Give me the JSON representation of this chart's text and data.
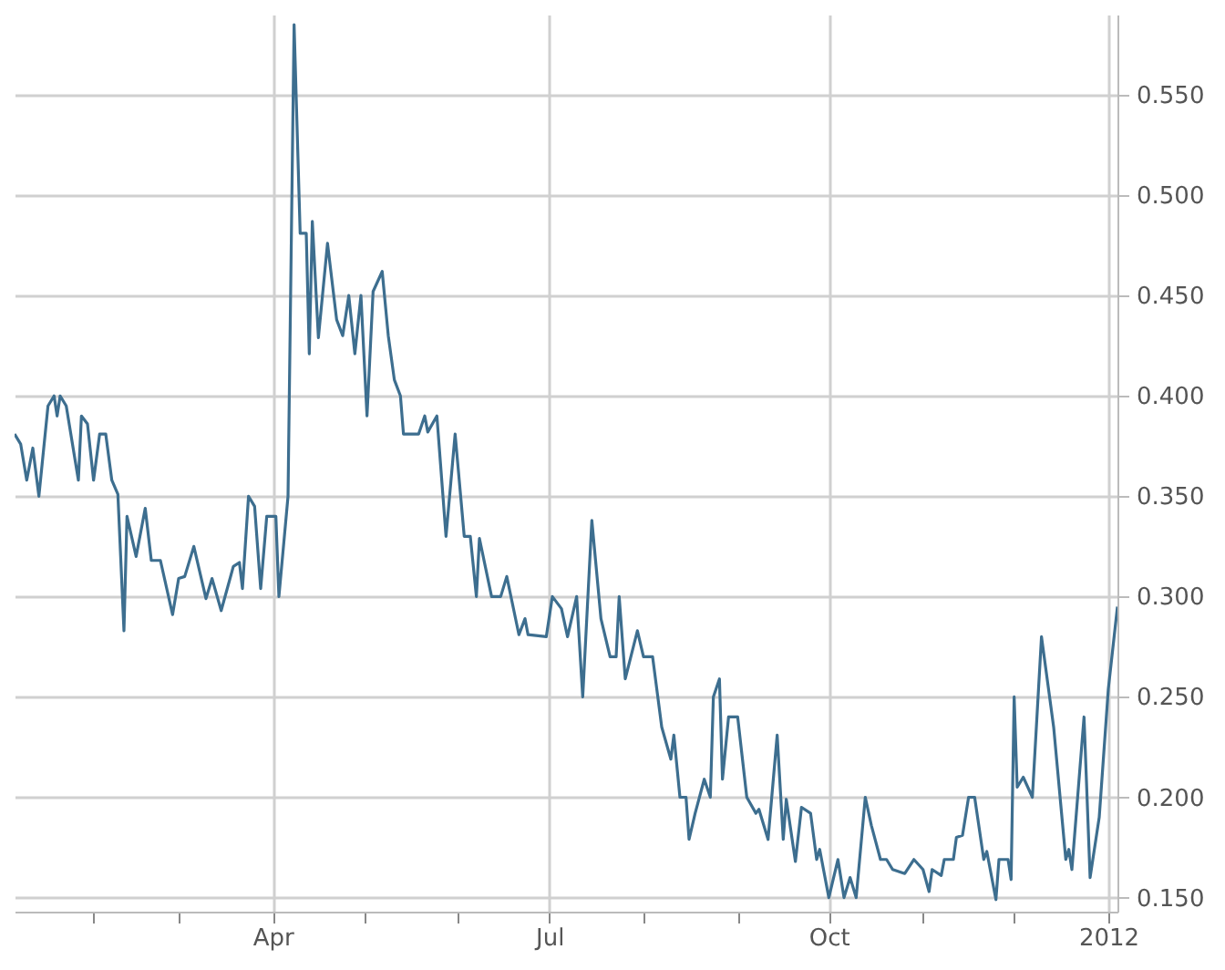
{
  "chart_data": {
    "type": "line",
    "x": [
      "2011-01-06",
      "2011-01-08",
      "2011-01-10",
      "2011-01-12",
      "2011-01-14",
      "2011-01-17",
      "2011-01-19",
      "2011-01-20",
      "2011-01-21",
      "2011-01-23",
      "2011-01-27",
      "2011-01-28",
      "2011-01-30",
      "2011-02-01",
      "2011-02-03",
      "2011-02-05",
      "2011-02-07",
      "2011-02-09",
      "2011-02-11",
      "2011-02-12",
      "2011-02-15",
      "2011-02-18",
      "2011-02-20",
      "2011-02-23",
      "2011-02-27",
      "2011-03-01",
      "2011-03-03",
      "2011-03-06",
      "2011-03-10",
      "2011-03-12",
      "2011-03-15",
      "2011-03-19",
      "2011-03-21",
      "2011-03-22",
      "2011-03-24",
      "2011-03-26",
      "2011-03-28",
      "2011-03-30",
      "2011-04-02",
      "2011-04-03",
      "2011-04-06",
      "2011-04-08",
      "2011-04-10",
      "2011-04-12",
      "2011-04-13",
      "2011-04-14",
      "2011-04-16",
      "2011-04-19",
      "2011-04-22",
      "2011-04-24",
      "2011-04-26",
      "2011-04-28",
      "2011-04-30",
      "2011-05-02",
      "2011-05-04",
      "2011-05-07",
      "2011-05-09",
      "2011-05-11",
      "2011-05-13",
      "2011-05-14",
      "2011-05-19",
      "2011-05-21",
      "2011-05-22",
      "2011-05-25",
      "2011-05-28",
      "2011-05-31",
      "2011-06-03",
      "2011-06-05",
      "2011-06-07",
      "2011-06-08",
      "2011-06-12",
      "2011-06-15",
      "2011-06-17",
      "2011-06-21",
      "2011-06-23",
      "2011-06-24",
      "2011-06-30",
      "2011-07-02",
      "2011-07-05",
      "2011-07-07",
      "2011-07-10",
      "2011-07-12",
      "2011-07-15",
      "2011-07-18",
      "2011-07-21",
      "2011-07-23",
      "2011-07-24",
      "2011-07-26",
      "2011-07-30",
      "2011-08-01",
      "2011-08-04",
      "2011-08-07",
      "2011-08-10",
      "2011-08-11",
      "2011-08-13",
      "2011-08-15",
      "2011-08-16",
      "2011-08-18",
      "2011-08-21",
      "2011-08-23",
      "2011-08-24",
      "2011-08-26",
      "2011-08-27",
      "2011-08-29",
      "2011-09-01",
      "2011-09-04",
      "2011-09-07",
      "2011-09-08",
      "2011-09-11",
      "2011-09-14",
      "2011-09-16",
      "2011-09-17",
      "2011-09-20",
      "2011-09-22",
      "2011-09-25",
      "2011-09-27",
      "2011-09-28",
      "2011-10-01",
      "2011-10-04",
      "2011-10-06",
      "2011-10-08",
      "2011-10-10",
      "2011-10-13",
      "2011-10-15",
      "2011-10-18",
      "2011-10-20",
      "2011-10-22",
      "2011-10-26",
      "2011-10-29",
      "2011-11-01",
      "2011-11-03",
      "2011-11-04",
      "2011-11-07",
      "2011-11-08",
      "2011-11-11",
      "2011-11-12",
      "2011-11-14",
      "2011-11-16",
      "2011-11-18",
      "2011-11-21",
      "2011-11-22",
      "2011-11-25",
      "2011-11-26",
      "2011-11-29",
      "2011-11-30",
      "2011-12-01",
      "2011-12-02",
      "2011-12-04",
      "2011-12-07",
      "2011-12-10",
      "2011-12-14",
      "2011-12-18",
      "2011-12-19",
      "2011-12-20",
      "2011-12-24",
      "2011-12-26",
      "2011-12-29",
      "2012-01-01",
      "2012-01-04"
    ],
    "series": [
      {
        "color": "#3d6e8f",
        "values": [
          0.381,
          0.376,
          0.358,
          0.374,
          0.35,
          0.395,
          0.4,
          0.39,
          0.4,
          0.395,
          0.358,
          0.39,
          0.386,
          0.358,
          0.381,
          0.381,
          0.358,
          0.351,
          0.283,
          0.34,
          0.32,
          0.344,
          0.318,
          0.318,
          0.291,
          0.309,
          0.31,
          0.325,
          0.299,
          0.309,
          0.293,
          0.315,
          0.317,
          0.304,
          0.35,
          0.345,
          0.304,
          0.34,
          0.34,
          0.3,
          0.35,
          0.585,
          0.481,
          0.481,
          0.421,
          0.487,
          0.429,
          0.476,
          0.438,
          0.43,
          0.45,
          0.421,
          0.45,
          0.39,
          0.452,
          0.462,
          0.43,
          0.408,
          0.4,
          0.381,
          0.381,
          0.39,
          0.382,
          0.39,
          0.33,
          0.381,
          0.33,
          0.33,
          0.3,
          0.329,
          0.3,
          0.3,
          0.31,
          0.281,
          0.289,
          0.281,
          0.28,
          0.3,
          0.294,
          0.28,
          0.3,
          0.25,
          0.338,
          0.289,
          0.27,
          0.27,
          0.3,
          0.259,
          0.283,
          0.27,
          0.27,
          0.235,
          0.219,
          0.231,
          0.2,
          0.2,
          0.179,
          0.192,
          0.209,
          0.2,
          0.25,
          0.259,
          0.209,
          0.24,
          0.24,
          0.2,
          0.192,
          0.194,
          0.179,
          0.231,
          0.179,
          0.199,
          0.168,
          0.195,
          0.192,
          0.169,
          0.174,
          0.15,
          0.169,
          0.15,
          0.16,
          0.15,
          0.2,
          0.186,
          0.169,
          0.169,
          0.164,
          0.162,
          0.169,
          0.164,
          0.153,
          0.164,
          0.161,
          0.169,
          0.169,
          0.18,
          0.181,
          0.2,
          0.2,
          0.169,
          0.173,
          0.149,
          0.169,
          0.169,
          0.159,
          0.25,
          0.205,
          0.21,
          0.2,
          0.28,
          0.235,
          0.169,
          0.174,
          0.164,
          0.24,
          0.16,
          0.19,
          0.254,
          0.295
        ]
      }
    ],
    "xlim": [
      "2011-01-06",
      "2012-01-04"
    ],
    "xticks": [
      {
        "value": "2011-02-01",
        "label": null
      },
      {
        "value": "2011-03-01",
        "label": null
      },
      {
        "value": "2011-04-01",
        "label": "Apr"
      },
      {
        "value": "2011-05-01",
        "label": null
      },
      {
        "value": "2011-06-01",
        "label": null
      },
      {
        "value": "2011-07-01",
        "label": "Jul"
      },
      {
        "value": "2011-08-01",
        "label": null
      },
      {
        "value": "2011-09-01",
        "label": null
      },
      {
        "value": "2011-10-01",
        "label": "Oct"
      },
      {
        "value": "2011-11-01",
        "label": null
      },
      {
        "value": "2011-12-01",
        "label": null
      },
      {
        "value": "2012-01-01",
        "label": "2012"
      }
    ],
    "ylim": [
      0.143,
      0.59
    ],
    "yticks": [
      {
        "value": 0.15,
        "label": "0.150"
      },
      {
        "value": 0.2,
        "label": "0.200"
      },
      {
        "value": 0.25,
        "label": "0.250"
      },
      {
        "value": 0.3,
        "label": "0.300"
      },
      {
        "value": 0.35,
        "label": "0.350"
      },
      {
        "value": 0.4,
        "label": "0.400"
      },
      {
        "value": 0.45,
        "label": "0.450"
      },
      {
        "value": 0.5,
        "label": "0.500"
      },
      {
        "value": 0.55,
        "label": "0.550"
      }
    ],
    "grid": true,
    "line_style": "solid"
  }
}
